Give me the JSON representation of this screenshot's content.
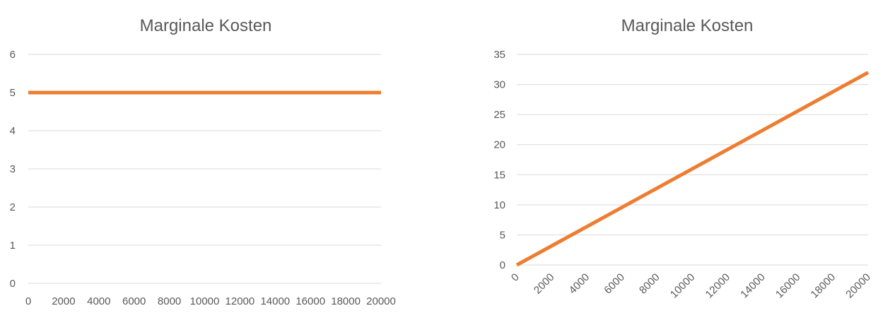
{
  "colors": {
    "series": "#ED7D31",
    "grid": "#D9D9D9",
    "text": "#595959",
    "background": "#FFFFFF"
  },
  "chart_data": [
    {
      "type": "line",
      "title": "Marginale Kosten",
      "xlabel": "",
      "ylabel": "",
      "x": [
        0,
        2000,
        4000,
        6000,
        8000,
        10000,
        12000,
        14000,
        16000,
        18000,
        20000
      ],
      "x_tick_labels": [
        "0",
        "2000",
        "4000",
        "6000",
        "8000",
        "10000",
        "12000",
        "14000",
        "16000",
        "18000",
        "20000"
      ],
      "y_tick_labels": [
        "0",
        "1",
        "2",
        "3",
        "4",
        "5",
        "6"
      ],
      "ylim": [
        0,
        6
      ],
      "xlim": [
        0,
        20000
      ],
      "grid": true,
      "legend": "none",
      "x_tick_rotation": "none",
      "series": [
        {
          "values": [
            5,
            5,
            5,
            5,
            5,
            5,
            5,
            5,
            5,
            5,
            5
          ]
        }
      ]
    },
    {
      "type": "line",
      "title": "Marginale Kosten",
      "xlabel": "",
      "ylabel": "",
      "x": [
        0,
        2000,
        4000,
        6000,
        8000,
        10000,
        12000,
        14000,
        16000,
        18000,
        20000
      ],
      "x_tick_labels": [
        "0",
        "2000",
        "4000",
        "6000",
        "8000",
        "10000",
        "12000",
        "14000",
        "16000",
        "18000",
        "20000"
      ],
      "y_tick_labels": [
        "0",
        "5",
        "10",
        "15",
        "20",
        "25",
        "30",
        "35"
      ],
      "ylim": [
        0,
        35
      ],
      "xlim": [
        0,
        20000
      ],
      "grid": true,
      "legend": "none",
      "x_tick_rotation": "diagonal",
      "series": [
        {
          "values": [
            0,
            3.2,
            6.4,
            9.6,
            12.8,
            16,
            19.2,
            22.4,
            25.6,
            28.8,
            32
          ]
        }
      ]
    }
  ]
}
